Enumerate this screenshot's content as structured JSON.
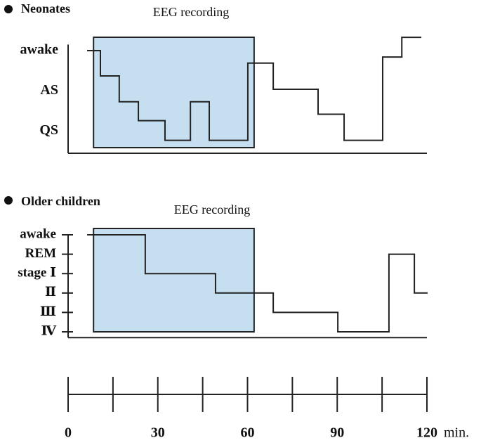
{
  "chart_data": [
    {
      "type": "step",
      "title": "Neonates",
      "annotation": "EEG recording",
      "shaded_region": [
        8.5,
        62.2
      ],
      "shade_color": "#c5dff0",
      "x": [
        6.6,
        10.8,
        17.1,
        23.5,
        32.4,
        40.9,
        47.2,
        60.1,
        68.6,
        83.6,
        92.3,
        105.2,
        111.6
      ],
      "x_end": 117.9,
      "values": [
        3.0,
        2.37,
        1.73,
        1.26,
        0.77,
        1.73,
        0.77,
        2.69,
        2.04,
        1.42,
        0.77,
        2.84,
        3.33
      ],
      "ylim": [
        0.45,
        3.15
      ],
      "yticks": [
        {
          "value": 3,
          "label": "awake"
        },
        {
          "value": 2,
          "label": "AS"
        },
        {
          "value": 1,
          "label": "QS"
        }
      ],
      "tick_marks": false
    },
    {
      "type": "step",
      "title": "Older children",
      "annotation": "EEG recording",
      "shaded_region": [
        8.5,
        62.2
      ],
      "shade_color": "#c5dff0",
      "x": [
        6.6,
        25.8,
        49.3,
        68.6,
        90.2,
        107.3,
        115.8
      ],
      "x_end": 120,
      "values": [
        6,
        4,
        3,
        2,
        1,
        5,
        3
      ],
      "ylim": [
        0.7,
        6
      ],
      "yticks": [
        {
          "value": 6,
          "label": "awake"
        },
        {
          "value": 5,
          "label": "REM"
        },
        {
          "value": 4,
          "label": "stage Ⅰ"
        },
        {
          "value": 3,
          "label": "Ⅱ"
        },
        {
          "value": 2,
          "label": "Ⅲ"
        },
        {
          "value": 1,
          "label": "Ⅳ"
        }
      ],
      "tick_marks": true
    }
  ],
  "time_axis": {
    "xlim": [
      0,
      120
    ],
    "xticks": [
      0,
      30,
      60,
      90,
      120
    ],
    "minor_xticks": [
      15,
      45,
      75,
      105
    ],
    "unit": "min."
  }
}
